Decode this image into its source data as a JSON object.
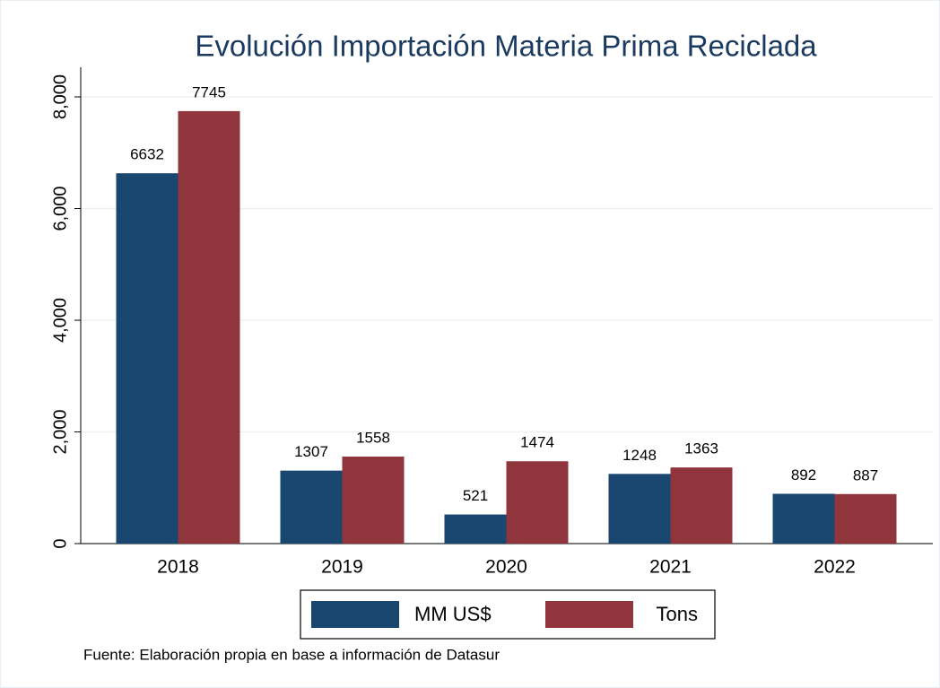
{
  "chart_data": {
    "type": "bar",
    "title": "Evolución Importación Materia Prima Reciclada",
    "categories": [
      "2018",
      "2019",
      "2020",
      "2021",
      "2022"
    ],
    "series": [
      {
        "name": "MM US$",
        "color": "#1a476f",
        "values": [
          6632,
          1307,
          521,
          1248,
          892
        ]
      },
      {
        "name": "Tons",
        "color": "#90353b",
        "values": [
          7745,
          1558,
          1474,
          1363,
          887
        ]
      }
    ],
    "ylim": [
      0,
      8000
    ],
    "yticks": [
      0,
      {
        "value": 2000,
        "label": "2,000"
      },
      {
        "value": 4000,
        "label": "4,000"
      },
      {
        "value": 6000,
        "label": "6,000"
      },
      {
        "value": 8000,
        "label": "8,000"
      }
    ],
    "grid": true,
    "legend": "bottom",
    "note": "Fuente: Elaboración propia en base a información de Datasur"
  }
}
